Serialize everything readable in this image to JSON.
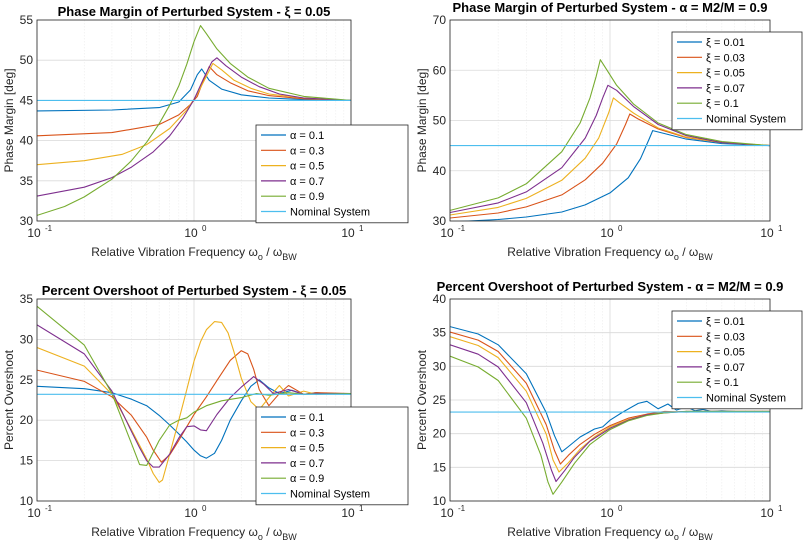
{
  "chart_data": [
    {
      "type": "line",
      "title": "Phase Margin of Perturbed System - ξ = 0.05",
      "xlabel": "Relative Vibration Frequency ωo / ωBW",
      "ylabel": "Phase Margin [deg]",
      "xscale": "log",
      "xlim": [
        0.1,
        10
      ],
      "ylim": [
        30,
        55
      ],
      "yticks": [
        30,
        35,
        40,
        45,
        50,
        55
      ],
      "legend_position": "bottom-right",
      "series": [
        {
          "name": "α = 0.1",
          "color": "#0072BD",
          "x": [
            0.1,
            0.3,
            0.6,
            0.8,
            0.95,
            1.05,
            1.12,
            1.25,
            1.5,
            2,
            3,
            5,
            10
          ],
          "y": [
            43.7,
            43.8,
            44.1,
            44.8,
            46.3,
            48.2,
            48.9,
            47.5,
            46.4,
            45.7,
            45.3,
            45.1,
            45
          ]
        },
        {
          "name": "α = 0.3",
          "color": "#D95319",
          "x": [
            0.1,
            0.3,
            0.6,
            0.8,
            0.95,
            1.05,
            1.15,
            1.25,
            1.4,
            1.7,
            2.2,
            3,
            5,
            10
          ],
          "y": [
            40.6,
            41,
            42,
            43.2,
            44.5,
            45.5,
            47.5,
            49.2,
            48.2,
            47.2,
            46.2,
            45.6,
            45.2,
            45
          ]
        },
        {
          "name": "α = 0.5",
          "color": "#EDB120",
          "x": [
            0.1,
            0.2,
            0.35,
            0.5,
            0.7,
            0.9,
            1.05,
            1.2,
            1.32,
            1.5,
            1.8,
            2.3,
            3,
            5,
            10
          ],
          "y": [
            37,
            37.5,
            38.3,
            39.5,
            41.5,
            43.8,
            45.8,
            48,
            49.6,
            48.8,
            47.5,
            46.5,
            45.8,
            45.3,
            45
          ]
        },
        {
          "name": "α = 0.7",
          "color": "#7E2F8E",
          "x": [
            0.1,
            0.2,
            0.3,
            0.4,
            0.55,
            0.7,
            0.85,
            1,
            1.15,
            1.3,
            1.4,
            1.6,
            2,
            2.6,
            3.5,
            5,
            10
          ],
          "y": [
            33.1,
            34.2,
            35.4,
            36.7,
            38.6,
            40.6,
            42.8,
            45.1,
            47.7,
            49.8,
            50.3,
            49.3,
            47.9,
            46.7,
            45.8,
            45.3,
            45
          ]
        },
        {
          "name": "α = 0.9",
          "color": "#77AC30",
          "x": [
            0.1,
            0.15,
            0.2,
            0.3,
            0.4,
            0.5,
            0.6,
            0.7,
            0.8,
            0.9,
            1,
            1.1,
            1.2,
            1.4,
            1.7,
            2.2,
            3,
            5,
            10
          ],
          "y": [
            30.7,
            31.8,
            33,
            35.2,
            37.5,
            39.8,
            42.1,
            44.4,
            46.8,
            49.5,
            52.3,
            54.3,
            53.3,
            51.4,
            49.6,
            47.9,
            46.5,
            45.5,
            45
          ]
        },
        {
          "name": "Nominal System",
          "color": "#4DBEEE",
          "x": [
            0.1,
            10
          ],
          "y": [
            45,
            45
          ]
        }
      ]
    },
    {
      "type": "line",
      "title": "Phase Margin of Perturbed System - α = M2/M = 0.9",
      "xlabel": "Relative Vibration Frequency ωo / ωBW",
      "ylabel": "Phase Margin [deg]",
      "xscale": "log",
      "xlim": [
        0.1,
        10
      ],
      "ylim": [
        30,
        70
      ],
      "yticks": [
        30,
        40,
        50,
        60,
        70
      ],
      "legend_position": "top-right",
      "series": [
        {
          "name": "ξ = 0.01",
          "color": "#0072BD",
          "x": [
            0.1,
            0.2,
            0.3,
            0.5,
            0.7,
            1,
            1.3,
            1.55,
            1.75,
            1.85,
            2.2,
            3,
            5,
            10
          ],
          "y": [
            29.8,
            30.3,
            30.8,
            31.8,
            33.2,
            35.6,
            38.6,
            42.4,
            46.2,
            48,
            47.4,
            46.3,
            45.4,
            45
          ]
        },
        {
          "name": "ξ = 0.03",
          "color": "#D95319",
          "x": [
            0.1,
            0.2,
            0.3,
            0.5,
            0.7,
            0.9,
            1.1,
            1.25,
            1.33,
            1.5,
            2,
            3,
            5,
            10
          ],
          "y": [
            30.6,
            31.6,
            32.8,
            35.2,
            38.2,
            41.5,
            45.3,
            49.2,
            51.3,
            50.3,
            48.3,
            46.6,
            45.6,
            45
          ]
        },
        {
          "name": "ξ = 0.05",
          "color": "#EDB120",
          "x": [
            0.1,
            0.2,
            0.3,
            0.5,
            0.7,
            0.85,
            0.98,
            1.05,
            1.15,
            1.4,
            2,
            3,
            5,
            10
          ],
          "y": [
            31.2,
            32.7,
            34.5,
            38.1,
            42.5,
            46.5,
            51.5,
            54.5,
            53.5,
            51.5,
            48.5,
            46.7,
            45.6,
            45
          ]
        },
        {
          "name": "ξ = 0.07",
          "color": "#7E2F8E",
          "x": [
            0.1,
            0.2,
            0.3,
            0.5,
            0.7,
            0.82,
            0.9,
            0.97,
            1.1,
            1.4,
            2,
            3,
            5,
            10
          ],
          "y": [
            31.7,
            33.6,
            35.8,
            40.6,
            46.5,
            51,
            54.5,
            57,
            56,
            52.8,
            49.2,
            47,
            45.6,
            45
          ]
        },
        {
          "name": "ξ = 0.1",
          "color": "#77AC30",
          "x": [
            0.1,
            0.2,
            0.3,
            0.5,
            0.65,
            0.75,
            0.82,
            0.87,
            0.95,
            1.1,
            1.4,
            2,
            3,
            5,
            10
          ],
          "y": [
            32.1,
            34.6,
            37.4,
            43.8,
            49.5,
            54.5,
            58.8,
            62.1,
            60.2,
            57,
            53.3,
            49.5,
            47.2,
            45.8,
            45
          ]
        },
        {
          "name": "Nominal System",
          "color": "#4DBEEE",
          "x": [
            0.1,
            10
          ],
          "y": [
            45,
            45
          ]
        }
      ]
    },
    {
      "type": "line",
      "title": "Percent Overshoot of Perturbed System - ξ = 0.05",
      "xlabel": "Relative Vibration Frequency ωo / ωBW",
      "ylabel": "Percent Overshoot",
      "xscale": "log",
      "xlim": [
        0.1,
        10
      ],
      "ylim": [
        10,
        35
      ],
      "yticks": [
        10,
        15,
        20,
        25,
        30,
        35
      ],
      "legend_position": "bottom-right",
      "series": [
        {
          "name": "α = 0.1",
          "color": "#0072BD",
          "x": [
            0.1,
            0.2,
            0.3,
            0.4,
            0.5,
            0.6,
            0.7,
            0.8,
            0.9,
            1,
            1.1,
            1.2,
            1.35,
            1.5,
            1.7,
            2,
            2.3,
            2.6,
            3,
            3.5,
            4.2,
            5,
            6,
            7,
            10
          ],
          "y": [
            24.2,
            23.9,
            23.4,
            22.6,
            21.8,
            20.6,
            19.4,
            18.3,
            17.3,
            16.3,
            15.6,
            15.3,
            15.9,
            17.5,
            20,
            22.4,
            24.2,
            25,
            24,
            23.3,
            23.7,
            23.2,
            23.4,
            23.3,
            23.3
          ]
        },
        {
          "name": "α = 0.3",
          "color": "#D95319",
          "x": [
            0.1,
            0.2,
            0.3,
            0.4,
            0.5,
            0.55,
            0.62,
            0.7,
            0.8,
            0.9,
            1,
            1.2,
            1.4,
            1.7,
            2,
            2.2,
            2.4,
            2.6,
            3,
            3.5,
            4,
            5,
            6,
            10
          ],
          "y": [
            26.2,
            24.8,
            22.9,
            20.6,
            17.9,
            16.3,
            14.8,
            15.7,
            17.5,
            19.2,
            20.7,
            22.9,
            24.9,
            27.4,
            28.6,
            28.2,
            26.3,
            23.8,
            21.8,
            23.3,
            24.3,
            23.2,
            23.4,
            23.3
          ]
        },
        {
          "name": "α = 0.5",
          "color": "#EDB120",
          "x": [
            0.1,
            0.2,
            0.3,
            0.4,
            0.5,
            0.55,
            0.6,
            0.63,
            0.7,
            0.8,
            0.9,
            1,
            1.1,
            1.2,
            1.35,
            1.5,
            1.65,
            1.8,
            2,
            2.3,
            2.6,
            3,
            3.5,
            4,
            5,
            6,
            10
          ],
          "y": [
            29,
            26.7,
            23.2,
            18.8,
            15.2,
            13.4,
            12.3,
            12.6,
            15.8,
            20,
            23.8,
            27.3,
            29.7,
            31.2,
            32.2,
            32.1,
            30.8,
            28.4,
            25.2,
            22.3,
            21.3,
            22.8,
            24.3,
            23,
            23.6,
            23.2,
            23.3
          ]
        },
        {
          "name": "α = 0.7",
          "color": "#7E2F8E",
          "x": [
            0.1,
            0.2,
            0.3,
            0.4,
            0.45,
            0.5,
            0.55,
            0.6,
            0.7,
            0.8,
            0.9,
            1,
            1.1,
            1.2,
            1.4,
            1.7,
            2,
            2.4,
            2.8,
            3.2,
            4,
            5,
            6,
            10
          ],
          "y": [
            31.8,
            28.2,
            23.6,
            18.6,
            16.6,
            15,
            14.2,
            14.2,
            15.8,
            17.8,
            19.2,
            19.3,
            18.8,
            18.7,
            20.7,
            22.8,
            24.1,
            25.4,
            24.4,
            23.3,
            23.8,
            23.2,
            23.3,
            23.3
          ]
        },
        {
          "name": "α = 0.9",
          "color": "#77AC30",
          "x": [
            0.1,
            0.2,
            0.3,
            0.4,
            0.45,
            0.5,
            0.6,
            0.7,
            0.8,
            0.9,
            1,
            1.2,
            1.5,
            2,
            2.5,
            3,
            4,
            5,
            10
          ],
          "y": [
            34.1,
            29.3,
            23.3,
            17.1,
            14.5,
            14.4,
            17.5,
            19.4,
            20,
            20.3,
            21,
            21.8,
            22.4,
            22.8,
            23.3,
            23.1,
            23.4,
            23.2,
            23.3
          ]
        },
        {
          "name": "Nominal System",
          "color": "#4DBEEE",
          "x": [
            0.1,
            10
          ],
          "y": [
            23.2,
            23.2
          ]
        }
      ]
    },
    {
      "type": "line",
      "title": "Percent Overshoot of Perturbed System - α = M2/M = 0.9",
      "xlabel": "Relative Vibration Frequency ωo / ωBW",
      "ylabel": "Percent Overshoot",
      "xscale": "log",
      "xlim": [
        0.1,
        10
      ],
      "ylim": [
        10,
        40
      ],
      "yticks": [
        10,
        15,
        20,
        25,
        30,
        35,
        40
      ],
      "legend_position": "top-right",
      "series": [
        {
          "name": "ξ = 0.01",
          "color": "#0072BD",
          "x": [
            0.1,
            0.15,
            0.2,
            0.3,
            0.4,
            0.45,
            0.5,
            0.55,
            0.65,
            0.8,
            0.9,
            1,
            1.2,
            1.5,
            1.7,
            2,
            2.3,
            2.6,
            3,
            3.4,
            3.8,
            4.3,
            5,
            6
          ],
          "y": [
            35.9,
            34.8,
            33.2,
            28.9,
            23.1,
            19.7,
            17.3,
            18.1,
            19.5,
            20.7,
            21,
            22,
            23.2,
            24.5,
            24.8,
            23.7,
            24.4,
            23.5,
            24,
            23.4,
            23.6,
            23.3,
            23.4,
            23.3
          ]
        },
        {
          "name": "ξ = 0.03",
          "color": "#D95319",
          "x": [
            0.1,
            0.15,
            0.2,
            0.3,
            0.4,
            0.45,
            0.49,
            0.55,
            0.65,
            0.8,
            1,
            1.3,
            1.7,
            2.2,
            3,
            4,
            6,
            10
          ],
          "y": [
            35.1,
            33.9,
            32.2,
            27.5,
            21.3,
            17.5,
            15.5,
            16.8,
            18.4,
            19.9,
            21.2,
            22.3,
            22.9,
            23.3,
            23.2,
            23.3,
            23.3,
            23.3
          ]
        },
        {
          "name": "ξ = 0.05",
          "color": "#EDB120",
          "x": [
            0.1,
            0.15,
            0.2,
            0.3,
            0.4,
            0.44,
            0.48,
            0.55,
            0.65,
            0.8,
            1,
            1.3,
            1.7,
            2.2,
            3,
            5,
            10
          ],
          "y": [
            34.4,
            33.1,
            31.3,
            26.3,
            19.9,
            16.1,
            14.3,
            15.7,
            17.7,
            19.5,
            21,
            22.1,
            22.8,
            23.2,
            23.3,
            23.3,
            23.3
          ]
        },
        {
          "name": "ξ = 0.07",
          "color": "#7E2F8E",
          "x": [
            0.1,
            0.15,
            0.2,
            0.3,
            0.38,
            0.43,
            0.46,
            0.52,
            0.6,
            0.75,
            1,
            1.3,
            1.7,
            2.2,
            3,
            5,
            10
          ],
          "y": [
            33.2,
            31.8,
            29.9,
            24.6,
            18.6,
            14.6,
            12.9,
            14.5,
            16.5,
            18.9,
            20.8,
            22,
            22.8,
            23.1,
            23.3,
            23.3,
            23.3
          ]
        },
        {
          "name": "ξ = 0.1",
          "color": "#77AC30",
          "x": [
            0.1,
            0.15,
            0.2,
            0.3,
            0.37,
            0.41,
            0.44,
            0.5,
            0.6,
            0.75,
            1,
            1.3,
            1.7,
            2.2,
            3,
            5,
            10
          ],
          "y": [
            31.5,
            29.9,
            27.9,
            22.3,
            16.8,
            12.8,
            11,
            12.8,
            15.6,
            18.4,
            20.6,
            21.9,
            22.7,
            23.1,
            23.3,
            23.3,
            23.3
          ]
        },
        {
          "name": "Nominal System",
          "color": "#4DBEEE",
          "x": [
            0.1,
            10
          ],
          "y": [
            23.2,
            23.2
          ]
        }
      ]
    }
  ]
}
